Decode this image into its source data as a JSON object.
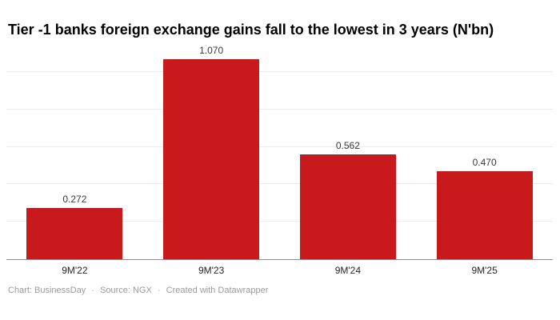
{
  "chart_data": {
    "type": "bar",
    "title": "Tier -1 banks foreign exchange gains fall to the lowest in 3 years (N'bn)",
    "categories": [
      "9M'22",
      "9M'23",
      "9M'24",
      "9M'25"
    ],
    "values": [
      0.272,
      1.07,
      0.562,
      0.47
    ],
    "value_labels": [
      "0.272",
      "1.070",
      "0.562",
      "0.470"
    ],
    "xlabel": "",
    "ylabel": "",
    "ylim": [
      0,
      1.15
    ],
    "yticks": [
      0.2,
      0.4,
      0.6,
      0.8,
      1.0
    ],
    "ytick_labels_visible": false,
    "grid": "horizontal",
    "legend": "none",
    "bar_color": "#c8191c",
    "gridline_color": "#ececec",
    "axis_color": "#8c8c8c"
  },
  "footer": {
    "chart_credit": "Chart: BusinessDay",
    "separator": "·",
    "source_credit": "Source: NGX",
    "created_credit": "Created with Datawrapper"
  }
}
